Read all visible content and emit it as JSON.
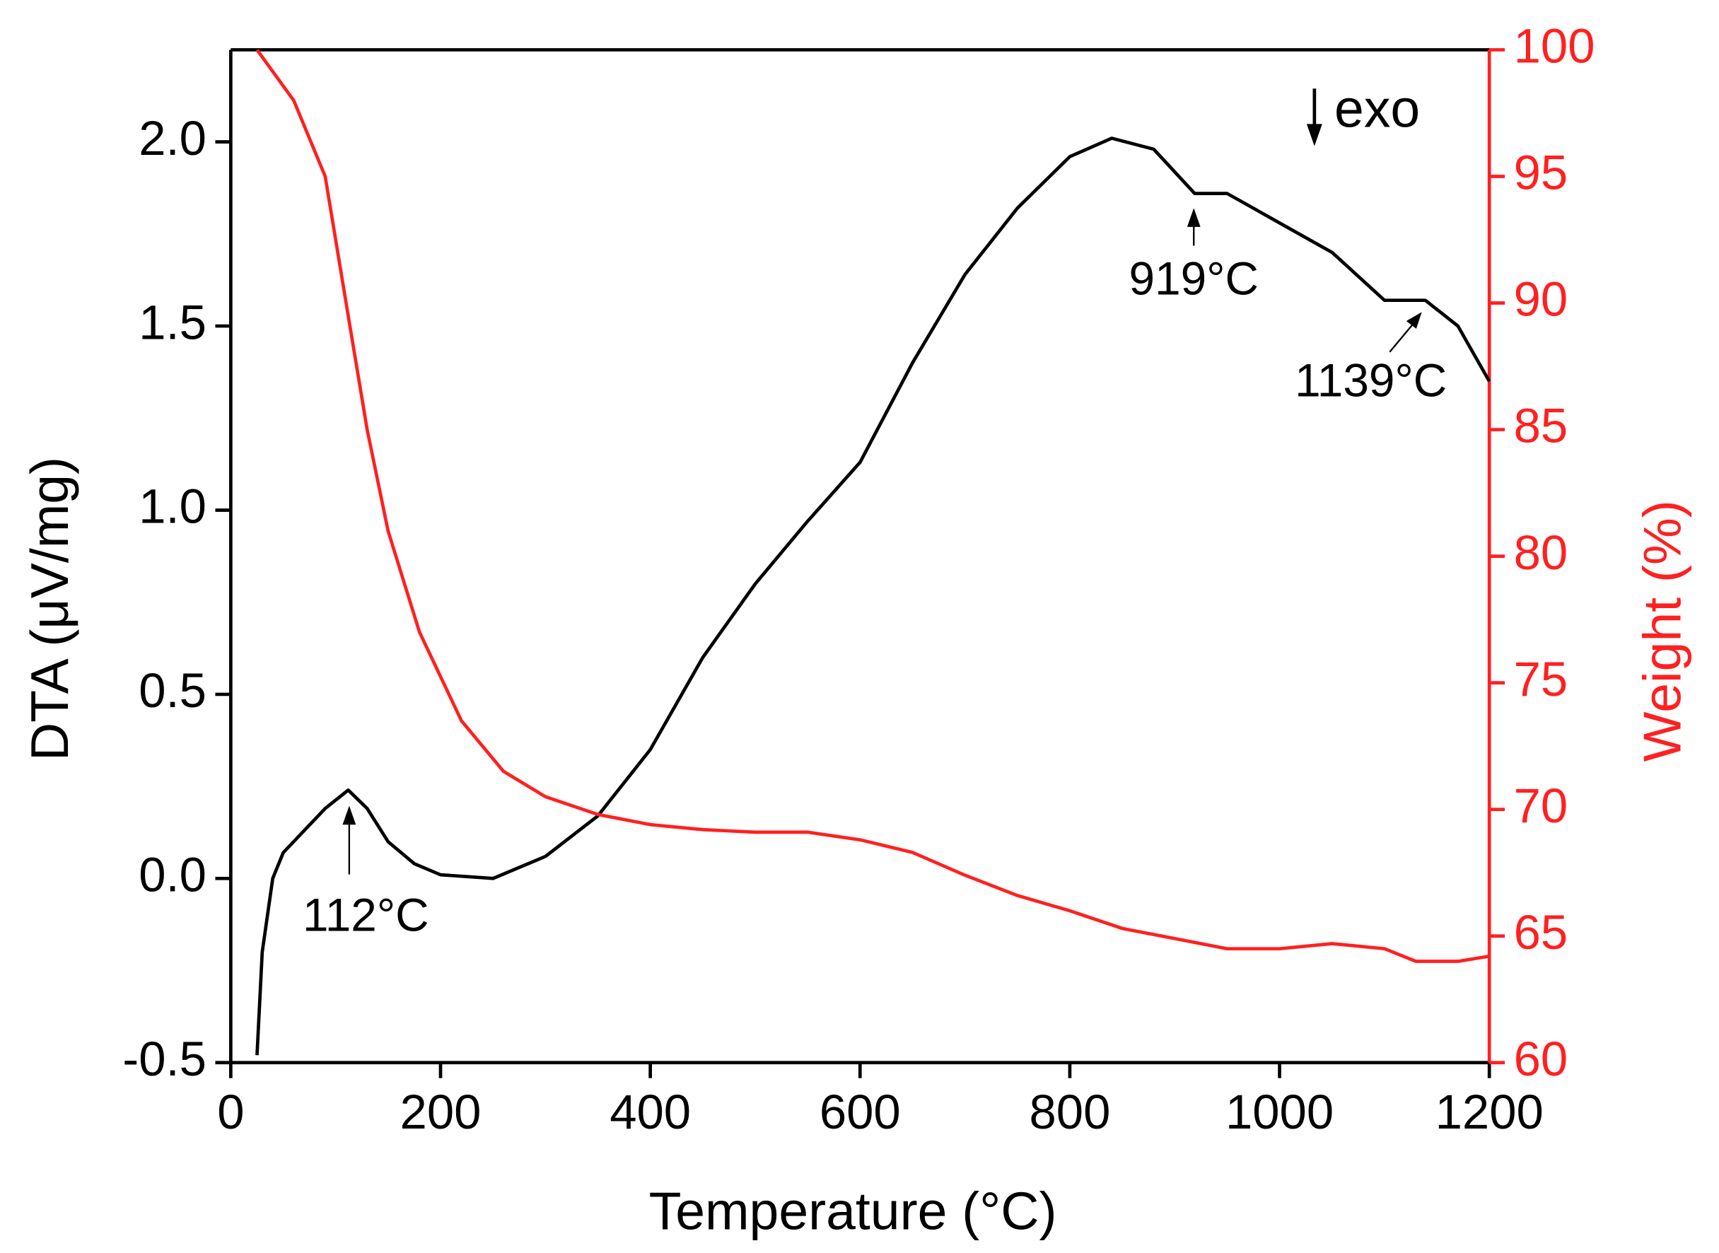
{
  "chart_data": {
    "type": "line",
    "xlabel": "Temperature (°C)",
    "ylabel": "DTA (μV/mg)",
    "y2label": "Weight (%)",
    "annotations": [
      "112°C",
      "919°C",
      "1139°C",
      "exo"
    ],
    "xlim": [
      0,
      1200
    ],
    "xticks": [
      0,
      200,
      400,
      600,
      800,
      1000,
      1200
    ],
    "ylim": [
      -0.5,
      2.25
    ],
    "yticks": [
      -0.5,
      {
        "value": 0,
        "label": "0.0"
      },
      0.5,
      {
        "value": 1,
        "label": "1.0"
      },
      1.5,
      {
        "value": 2,
        "label": "2.0"
      }
    ],
    "y2lim": [
      60,
      100
    ],
    "y2ticks": [
      60,
      65,
      70,
      75,
      80,
      85,
      90,
      95,
      100
    ],
    "series": [
      {
        "color": "#000000",
        "x": [
          25,
          30,
          40,
          50,
          70,
          90,
          112,
          130,
          150,
          175,
          200,
          250,
          300,
          350,
          400,
          450,
          500,
          550,
          600,
          650,
          700,
          750,
          800,
          840,
          880,
          919,
          950,
          1000,
          1050,
          1100,
          1139,
          1170,
          1200
        ],
        "values": [
          -0.48,
          -0.2,
          0.0,
          0.07,
          0.13,
          0.19,
          0.24,
          0.19,
          0.1,
          0.04,
          0.01,
          0.0,
          0.06,
          0.17,
          0.35,
          0.6,
          0.8,
          0.97,
          1.13,
          1.4,
          1.64,
          1.82,
          1.96,
          2.01,
          1.98,
          1.86,
          1.86,
          1.78,
          1.7,
          1.57,
          1.57,
          1.5,
          1.35
        ]
      },
      {
        "color": "#ff2020",
        "axis": "y2",
        "x": [
          25,
          60,
          90,
          110,
          130,
          150,
          180,
          220,
          260,
          300,
          350,
          400,
          450,
          500,
          550,
          600,
          650,
          700,
          750,
          800,
          850,
          900,
          950,
          1000,
          1050,
          1100,
          1130,
          1170,
          1200
        ],
        "values": [
          100,
          98,
          95,
          90,
          85,
          81,
          77,
          73.5,
          71.5,
          70.5,
          69.8,
          69.4,
          69.2,
          69.1,
          69.1,
          68.8,
          68.3,
          67.4,
          66.6,
          66,
          65.3,
          64.9,
          64.5,
          64.5,
          64.7,
          64.5,
          64,
          64,
          64.2
        ]
      }
    ]
  }
}
